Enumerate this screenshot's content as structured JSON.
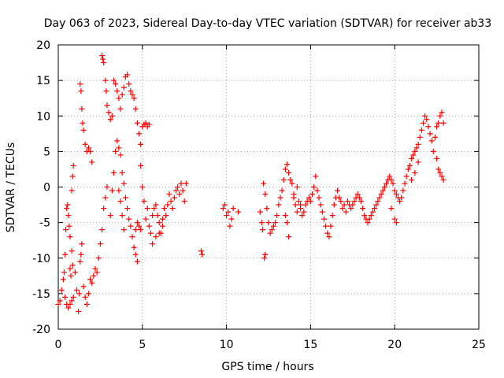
{
  "chart_data": {
    "type": "scatter",
    "title": "Day 063 of 2023, Sidereal Day-to-day VTEC variation (SDTVAR) for receiver ab33",
    "xlabel": "GPS time / hours",
    "ylabel": "SDTVAR / TECUs",
    "xlim": [
      0,
      25
    ],
    "ylim": [
      -20,
      20
    ],
    "xticks": [
      0,
      5,
      10,
      15,
      20,
      25
    ],
    "yticks": [
      -20,
      -15,
      -10,
      -5,
      0,
      5,
      10,
      15,
      20
    ],
    "grid": true,
    "marker": "+",
    "color": "#ff0000",
    "series": [
      {
        "name": "SDTVAR",
        "points": [
          [
            0.0,
            -16.5
          ],
          [
            0.1,
            -16.0
          ],
          [
            0.2,
            -14.5
          ],
          [
            0.3,
            -13.0
          ],
          [
            0.35,
            -12.0
          ],
          [
            0.4,
            -9.5
          ],
          [
            0.45,
            -6.0
          ],
          [
            0.5,
            -3.0
          ],
          [
            0.55,
            -2.5
          ],
          [
            0.6,
            -4.0
          ],
          [
            0.65,
            -5.5
          ],
          [
            0.7,
            -7.0
          ],
          [
            0.8,
            -9.0
          ],
          [
            0.85,
            -11.0
          ],
          [
            0.4,
            -15.5
          ],
          [
            0.5,
            -16.5
          ],
          [
            0.6,
            -17.0
          ],
          [
            0.7,
            -16.5
          ],
          [
            0.8,
            -16.0
          ],
          [
            0.9,
            -15.5
          ],
          [
            0.7,
            -11.5
          ],
          [
            0.75,
            -12.5
          ],
          [
            0.8,
            -0.5
          ],
          [
            0.85,
            1.5
          ],
          [
            0.9,
            3.0
          ],
          [
            1.0,
            -12.0
          ],
          [
            1.1,
            -14.5
          ],
          [
            1.2,
            -17.5
          ],
          [
            1.25,
            -15.0
          ],
          [
            1.3,
            -10.5
          ],
          [
            1.35,
            -9.5
          ],
          [
            1.4,
            -8.0
          ],
          [
            1.3,
            14.5
          ],
          [
            1.35,
            13.5
          ],
          [
            1.4,
            11.0
          ],
          [
            1.45,
            9.0
          ],
          [
            1.5,
            8.0
          ],
          [
            1.6,
            6.0
          ],
          [
            1.7,
            5.0
          ],
          [
            1.8,
            5.5
          ],
          [
            1.9,
            5.0
          ],
          [
            2.0,
            3.5
          ],
          [
            1.5,
            -14.0
          ],
          [
            1.6,
            -15.5
          ],
          [
            1.7,
            -16.5
          ],
          [
            1.8,
            -15.0
          ],
          [
            1.9,
            -13.0
          ],
          [
            2.0,
            -13.5
          ],
          [
            2.1,
            -12.5
          ],
          [
            2.2,
            -11.5
          ],
          [
            2.3,
            -12.0
          ],
          [
            2.4,
            -10.0
          ],
          [
            2.5,
            -8.0
          ],
          [
            2.6,
            -6.0
          ],
          [
            2.7,
            -3.0
          ],
          [
            2.8,
            -1.5
          ],
          [
            2.9,
            0.0
          ],
          [
            2.6,
            18.5
          ],
          [
            2.65,
            18.0
          ],
          [
            2.7,
            17.5
          ],
          [
            2.8,
            15.0
          ],
          [
            2.85,
            13.5
          ],
          [
            2.9,
            11.5
          ],
          [
            3.0,
            10.5
          ],
          [
            3.1,
            9.5
          ],
          [
            3.2,
            10.0
          ],
          [
            3.1,
            -4.0
          ],
          [
            3.2,
            -0.5
          ],
          [
            3.3,
            2.0
          ],
          [
            3.4,
            5.0
          ],
          [
            3.5,
            6.5
          ],
          [
            3.6,
            5.5
          ],
          [
            3.7,
            4.5
          ],
          [
            3.8,
            2.0
          ],
          [
            3.9,
            0.5
          ],
          [
            4.0,
            -1.5
          ],
          [
            4.1,
            -3.0
          ],
          [
            4.2,
            -4.5
          ],
          [
            4.3,
            -5.5
          ],
          [
            4.4,
            -7.0
          ],
          [
            4.5,
            -8.5
          ],
          [
            4.6,
            -9.5
          ],
          [
            4.7,
            -10.5
          ],
          [
            4.6,
            -6.0
          ],
          [
            4.7,
            -5.0
          ],
          [
            4.8,
            -5.5
          ],
          [
            4.9,
            -6.0
          ],
          [
            3.3,
            15.0
          ],
          [
            3.4,
            14.5
          ],
          [
            3.5,
            13.5
          ],
          [
            3.6,
            12.5
          ],
          [
            3.7,
            11.0
          ],
          [
            3.8,
            13.0
          ],
          [
            3.9,
            14.0
          ],
          [
            4.0,
            15.5
          ],
          [
            4.1,
            15.8
          ],
          [
            4.2,
            14.5
          ],
          [
            4.3,
            13.5
          ],
          [
            4.4,
            13.0
          ],
          [
            4.5,
            12.5
          ],
          [
            4.6,
            11.0
          ],
          [
            4.7,
            9.0
          ],
          [
            4.8,
            7.5
          ],
          [
            4.9,
            6.0
          ],
          [
            3.6,
            -0.5
          ],
          [
            3.7,
            -2.0
          ],
          [
            3.8,
            -4.0
          ],
          [
            3.9,
            -6.0
          ],
          [
            4.9,
            3.0
          ],
          [
            5.0,
            0.0
          ],
          [
            5.1,
            -2.0
          ],
          [
            5.2,
            -4.5
          ],
          [
            5.3,
            -3.0
          ],
          [
            5.4,
            -5.5
          ],
          [
            5.5,
            -6.5
          ],
          [
            5.6,
            -4.0
          ],
          [
            5.7,
            -3.0
          ],
          [
            5.8,
            -2.5
          ],
          [
            5.9,
            -4.0
          ],
          [
            6.0,
            -5.0
          ],
          [
            6.1,
            -6.5
          ],
          [
            6.2,
            -4.5
          ],
          [
            6.3,
            -3.0
          ],
          [
            6.4,
            -4.0
          ],
          [
            6.5,
            -2.5
          ],
          [
            6.6,
            -1.0
          ],
          [
            6.7,
            -2.0
          ],
          [
            6.8,
            -3.0
          ],
          [
            6.9,
            -1.5
          ],
          [
            7.0,
            -0.5
          ],
          [
            7.1,
            0.0
          ],
          [
            7.2,
            -1.0
          ],
          [
            7.3,
            0.5
          ],
          [
            7.4,
            -0.5
          ],
          [
            7.5,
            -2.0
          ],
          [
            7.6,
            0.5
          ],
          [
            5.0,
            8.5
          ],
          [
            5.1,
            8.8
          ],
          [
            5.2,
            9.0
          ],
          [
            5.3,
            8.5
          ],
          [
            5.4,
            8.8
          ],
          [
            5.6,
            -8.0
          ],
          [
            5.8,
            -7.0
          ],
          [
            6.0,
            -6.5
          ],
          [
            6.2,
            -5.5
          ],
          [
            8.5,
            -9.0
          ],
          [
            8.55,
            -9.5
          ],
          [
            9.8,
            -3.0
          ],
          [
            9.9,
            -2.5
          ],
          [
            10.0,
            -4.0
          ],
          [
            10.1,
            -3.5
          ],
          [
            10.2,
            -5.5
          ],
          [
            10.3,
            -4.5
          ],
          [
            10.4,
            -3.0
          ],
          [
            10.7,
            -3.5
          ],
          [
            12.0,
            -3.5
          ],
          [
            12.1,
            -5.0
          ],
          [
            12.15,
            -6.0
          ],
          [
            12.25,
            -10.0
          ],
          [
            12.3,
            -9.5
          ],
          [
            12.4,
            -3.0
          ],
          [
            12.5,
            -5.0
          ],
          [
            12.6,
            -6.5
          ],
          [
            12.7,
            -6.0
          ],
          [
            12.8,
            -5.5
          ],
          [
            12.9,
            -5.0
          ],
          [
            13.0,
            -4.0
          ],
          [
            13.1,
            -2.5
          ],
          [
            13.2,
            -1.5
          ],
          [
            13.3,
            -0.5
          ],
          [
            13.4,
            1.0
          ],
          [
            13.5,
            2.5
          ],
          [
            13.6,
            3.2
          ],
          [
            13.7,
            2.0
          ],
          [
            13.8,
            1.0
          ],
          [
            13.9,
            0.5
          ],
          [
            14.0,
            -1.5
          ],
          [
            14.1,
            -2.5
          ],
          [
            14.2,
            -3.5
          ],
          [
            14.3,
            -2.0
          ],
          [
            14.4,
            -3.0
          ],
          [
            14.5,
            -4.0
          ],
          [
            14.6,
            -3.5
          ],
          [
            14.7,
            -2.5
          ],
          [
            14.8,
            -2.0
          ],
          [
            14.9,
            -1.5
          ],
          [
            13.5,
            -4.0
          ],
          [
            13.6,
            -5.0
          ],
          [
            13.7,
            -7.0
          ],
          [
            12.2,
            0.5
          ],
          [
            12.3,
            -1.0
          ],
          [
            15.0,
            -2.0
          ],
          [
            15.1,
            -1.0
          ],
          [
            15.2,
            0.0
          ],
          [
            15.3,
            1.5
          ],
          [
            15.4,
            -0.5
          ],
          [
            15.5,
            -1.5
          ],
          [
            15.6,
            -2.5
          ],
          [
            15.7,
            -3.5
          ],
          [
            15.8,
            -4.5
          ],
          [
            15.9,
            -5.5
          ],
          [
            16.0,
            -6.5
          ],
          [
            16.1,
            -7.0
          ],
          [
            16.2,
            -5.5
          ],
          [
            16.3,
            -4.0
          ],
          [
            16.4,
            -2.5
          ],
          [
            16.5,
            -1.5
          ],
          [
            16.6,
            -0.5
          ],
          [
            16.7,
            -1.5
          ],
          [
            16.8,
            -2.0
          ],
          [
            16.9,
            -3.0
          ],
          [
            17.0,
            -2.5
          ],
          [
            17.1,
            -3.5
          ],
          [
            17.2,
            -2.0
          ],
          [
            17.3,
            -2.5
          ],
          [
            17.4,
            -3.0
          ],
          [
            17.5,
            -2.5
          ],
          [
            17.6,
            -2.0
          ],
          [
            17.7,
            -1.5
          ],
          [
            17.8,
            -1.0
          ],
          [
            17.9,
            -1.5
          ],
          [
            18.0,
            -2.0
          ],
          [
            18.1,
            -3.0
          ],
          [
            18.2,
            -4.0
          ],
          [
            18.3,
            -4.5
          ],
          [
            18.4,
            -5.0
          ],
          [
            18.5,
            -4.5
          ],
          [
            18.6,
            -4.0
          ],
          [
            18.7,
            -3.5
          ],
          [
            18.8,
            -3.0
          ],
          [
            18.9,
            -2.5
          ],
          [
            19.0,
            -2.0
          ],
          [
            19.1,
            -1.5
          ],
          [
            19.2,
            -1.0
          ],
          [
            19.3,
            -0.5
          ],
          [
            19.4,
            0.0
          ],
          [
            19.5,
            0.5
          ],
          [
            19.6,
            1.0
          ],
          [
            19.7,
            1.5
          ],
          [
            19.8,
            1.0
          ],
          [
            19.9,
            0.5
          ],
          [
            20.0,
            -0.5
          ],
          [
            20.1,
            -1.0
          ],
          [
            20.2,
            -1.5
          ],
          [
            20.3,
            -2.0
          ],
          [
            20.4,
            -1.5
          ],
          [
            20.5,
            -0.5
          ],
          [
            20.6,
            0.5
          ],
          [
            20.7,
            1.5
          ],
          [
            20.8,
            2.5
          ],
          [
            20.9,
            3.0
          ],
          [
            21.0,
            4.0
          ],
          [
            21.1,
            4.5
          ],
          [
            21.2,
            5.0
          ],
          [
            21.3,
            5.5
          ],
          [
            21.4,
            6.0
          ],
          [
            21.5,
            7.0
          ],
          [
            21.6,
            8.0
          ],
          [
            21.7,
            9.0
          ],
          [
            21.8,
            10.0
          ],
          [
            21.9,
            9.5
          ],
          [
            22.0,
            8.5
          ],
          [
            22.1,
            7.5
          ],
          [
            22.2,
            6.5
          ],
          [
            22.3,
            5.0
          ],
          [
            22.4,
            7.0
          ],
          [
            22.5,
            8.5
          ],
          [
            22.6,
            9.0
          ],
          [
            22.7,
            10.0
          ],
          [
            22.8,
            10.5
          ],
          [
            22.9,
            9.0
          ],
          [
            19.8,
            -3.0
          ],
          [
            20.0,
            -4.5
          ],
          [
            20.1,
            -5.0
          ],
          [
            21.0,
            1.0
          ],
          [
            21.2,
            2.0
          ],
          [
            21.4,
            3.5
          ],
          [
            22.5,
            4.0
          ],
          [
            22.6,
            2.5
          ],
          [
            22.7,
            2.0
          ],
          [
            22.8,
            1.5
          ],
          [
            22.9,
            1.0
          ],
          [
            14.0,
            -1.0
          ],
          [
            14.2,
            0.0
          ],
          [
            14.4,
            -2.5
          ]
        ]
      }
    ]
  }
}
